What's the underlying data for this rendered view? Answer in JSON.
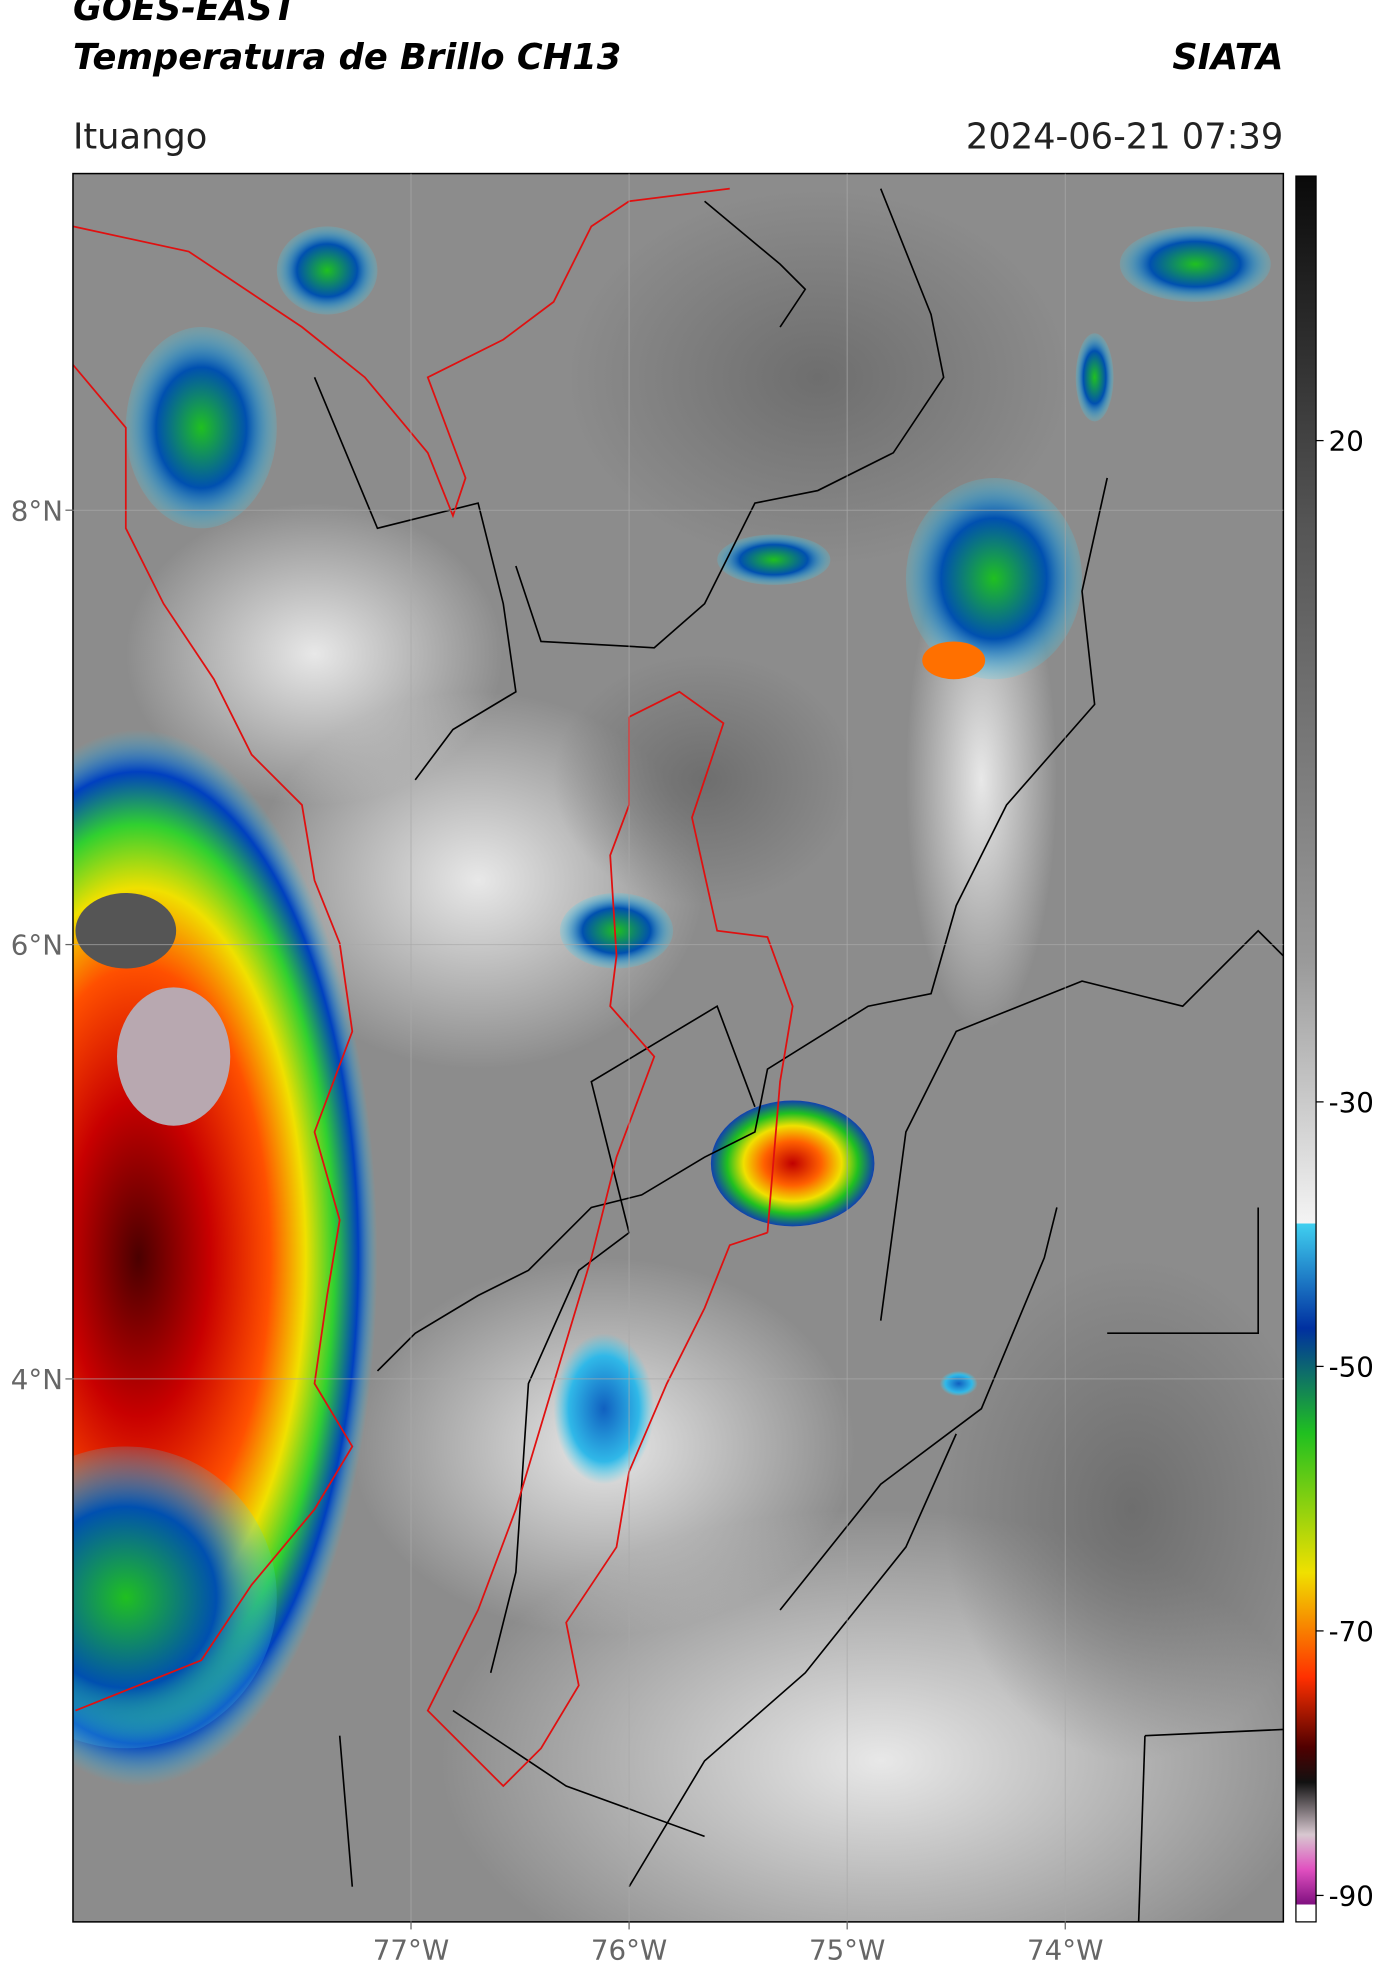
{
  "header": {
    "title": "GOES-EAST",
    "subtitle": "Temperatura de Brillo CH13",
    "agency": "SIATA",
    "location": "Ituango",
    "timestamp": "2024-06-21 07:39"
  },
  "map": {
    "lon_range": [
      -78.55,
      -73.0
    ],
    "lat_range": [
      1.5,
      9.55
    ],
    "grid": true,
    "lon_ticks": [
      {
        "value": -77,
        "label": "77°W"
      },
      {
        "value": -76,
        "label": "76°W"
      },
      {
        "value": -75,
        "label": "75°W"
      },
      {
        "value": -74,
        "label": "74°W"
      }
    ],
    "lat_ticks": [
      {
        "value": 8,
        "label": "8°N"
      },
      {
        "value": 6,
        "label": "6°N"
      },
      {
        "value": 4,
        "label": "4°N"
      }
    ]
  },
  "colorbar": {
    "range": [
      -92,
      40
    ],
    "ticks": [
      20,
      -30,
      -50,
      -70,
      -90
    ]
  }
}
